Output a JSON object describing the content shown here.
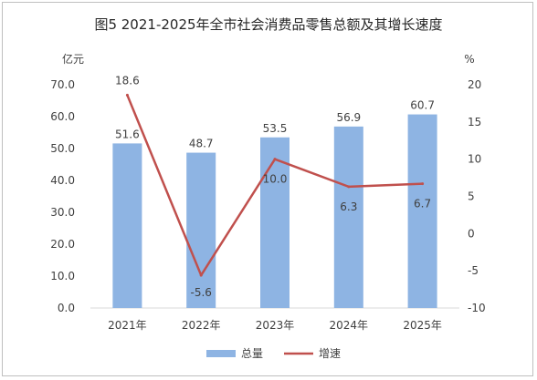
{
  "chart_data": {
    "type": "bar",
    "title": "图5  2021-2025年全市社会消费品零售总额及其增长速度",
    "categories": [
      "2021年",
      "2022年",
      "2023年",
      "2024年",
      "2025年"
    ],
    "series": [
      {
        "name": "总量",
        "type": "bar",
        "axis": "left",
        "values": [
          51.6,
          48.7,
          53.5,
          56.9,
          60.7
        ]
      },
      {
        "name": "增速",
        "type": "line",
        "axis": "right",
        "values": [
          18.6,
          -5.6,
          10.0,
          6.3,
          6.7
        ]
      }
    ],
    "value_labels": {
      "总量": [
        "51.6",
        "48.7",
        "53.5",
        "56.9",
        "60.7"
      ],
      "增速": [
        "18.6",
        "-5.6",
        "10.0",
        "6.3",
        "6.7"
      ]
    },
    "left_axis": {
      "unit": "亿元",
      "ylim": [
        0,
        70
      ],
      "ticks": [
        "0.0",
        "10.0",
        "20.0",
        "30.0",
        "40.0",
        "50.0",
        "60.0",
        "70.0"
      ]
    },
    "right_axis": {
      "unit": "%",
      "ylim": [
        -10,
        20
      ],
      "ticks": [
        "-10",
        "-5",
        "0",
        "5",
        "10",
        "15",
        "20"
      ]
    },
    "grid": false,
    "legend_position": "bottom",
    "colors": {
      "bar": "#8eb4e3",
      "line": "#c0504d",
      "axis": "#d9d9d9"
    }
  }
}
